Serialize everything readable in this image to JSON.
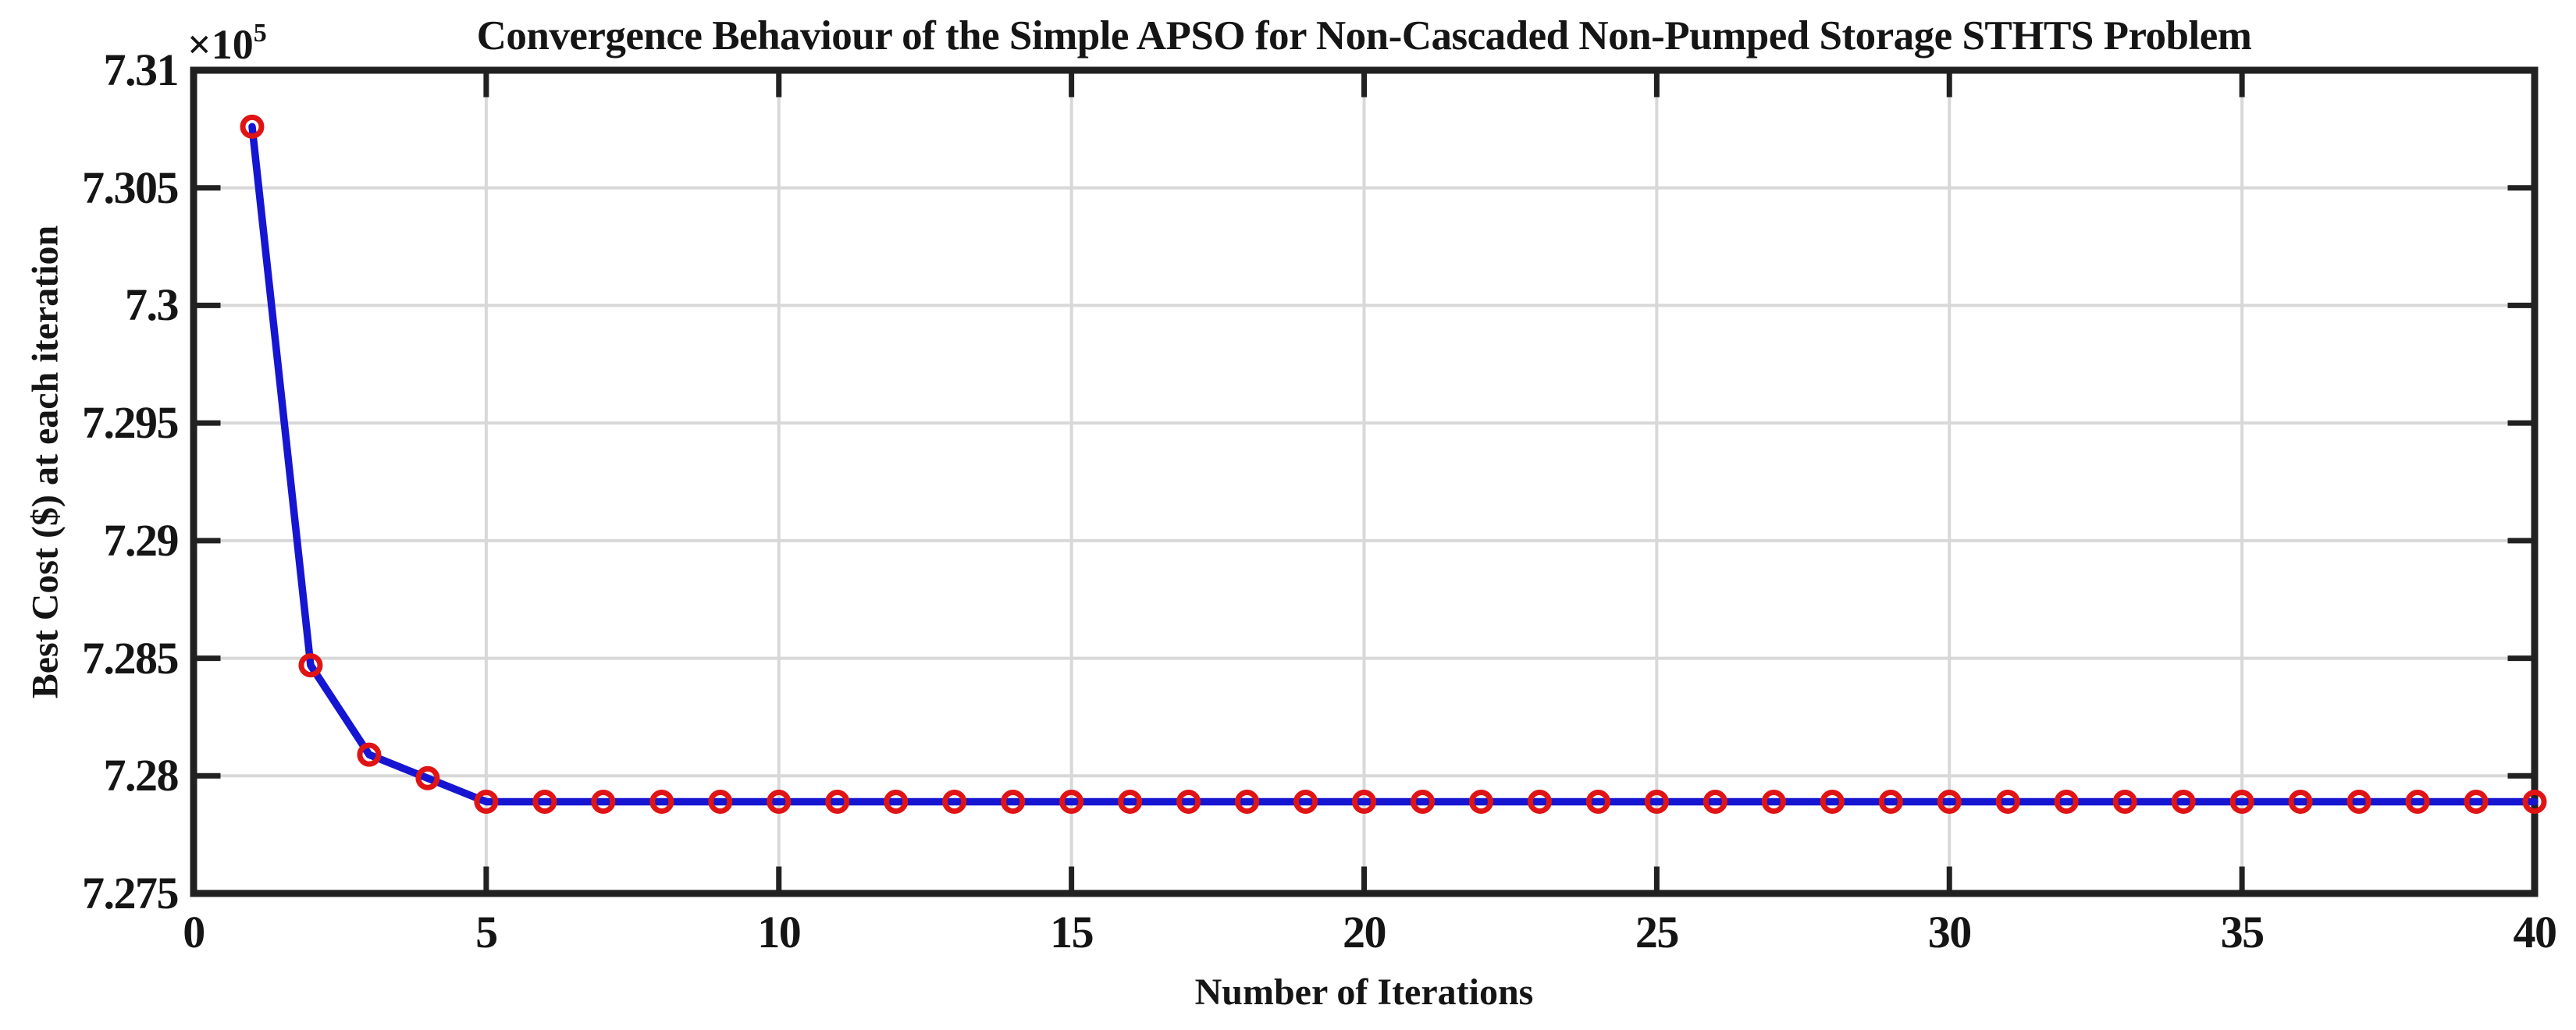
{
  "figure": {
    "background": "#ffffff"
  },
  "chart_data": {
    "type": "line",
    "title": "Convergence Behaviour of the Simple APSO for Non-Cascaded Non-Pumped Storage STHTS Problem",
    "xlabel": "Number of Iterations",
    "ylabel": "Best Cost ($) at each iteration",
    "y_axis_offset_label": "×10",
    "y_axis_offset_exponent": "5",
    "xlim": [
      0,
      40
    ],
    "ylim": [
      727500,
      731000
    ],
    "xticks": [
      0,
      5,
      10,
      15,
      20,
      25,
      30,
      35,
      40
    ],
    "xtick_labels": [
      "0",
      "5",
      "10",
      "15",
      "20",
      "25",
      "30",
      "35",
      "40"
    ],
    "yticks": [
      727500,
      728000,
      728500,
      729000,
      729500,
      730000,
      730500,
      731000
    ],
    "ytick_labels": [
      "7.275",
      "7.28",
      "7.285",
      "7.29",
      "7.295",
      "7.3",
      "7.305",
      "7.31"
    ],
    "grid": true,
    "legend_position": "none",
    "series": [
      {
        "name": "Best Cost at each iteration",
        "line_color": "#1515d2",
        "marker": "circle",
        "marker_color": "#e01414",
        "x": [
          1,
          2,
          3,
          4,
          5,
          6,
          7,
          8,
          9,
          10,
          11,
          12,
          13,
          14,
          15,
          16,
          17,
          18,
          19,
          20,
          21,
          22,
          23,
          24,
          25,
          26,
          27,
          28,
          29,
          30,
          31,
          32,
          33,
          34,
          35,
          36,
          37,
          38,
          39,
          40
        ],
        "y": [
          730760,
          728470,
          728090,
          727990,
          727890,
          727890,
          727890,
          727890,
          727890,
          727890,
          727890,
          727890,
          727890,
          727890,
          727890,
          727890,
          727890,
          727890,
          727890,
          727890,
          727890,
          727890,
          727890,
          727890,
          727890,
          727890,
          727890,
          727890,
          727890,
          727890,
          727890,
          727890,
          727890,
          727890,
          727890,
          727890,
          727890,
          727890,
          727890,
          727890
        ]
      }
    ],
    "styles": {
      "grid_color": "#d8d8d8",
      "frame_color": "#212121",
      "tick_color": "#212121",
      "text_color": "#151515"
    }
  }
}
